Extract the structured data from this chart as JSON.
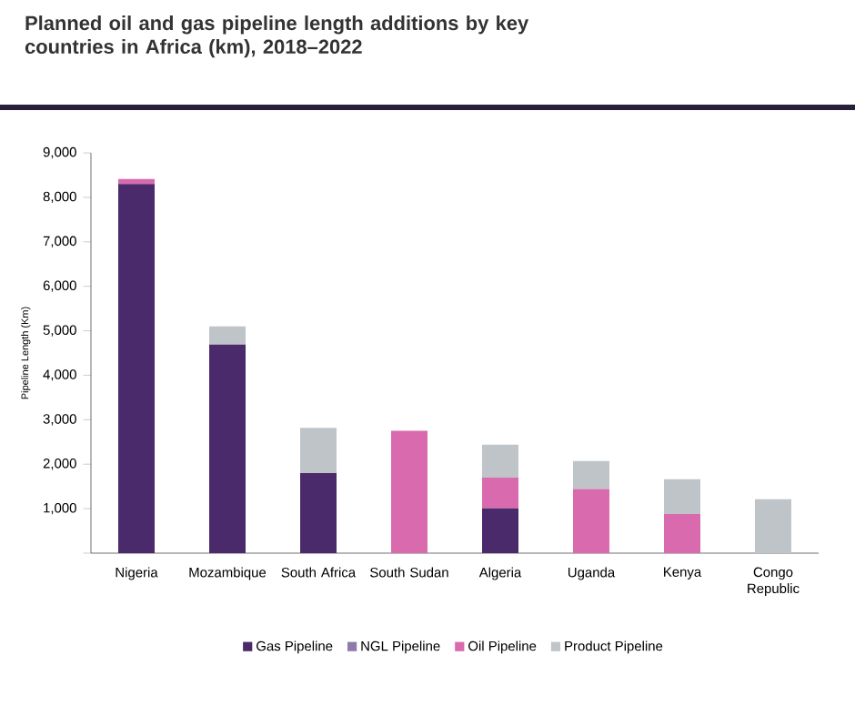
{
  "chart_data": {
    "type": "bar",
    "stacked": true,
    "title": "Planned oil and gas pipeline length additions by key countries in Africa (km), 2018–2022",
    "ylabel": "Pipeline Length (Km)",
    "categories": [
      "Nigeria",
      "Mozambique",
      "South Africa",
      "South Sudan",
      "Algeria",
      "Uganda",
      "Kenya",
      "Congo Republic"
    ],
    "series": [
      {
        "name": "Gas Pipeline",
        "color": "#4b2a6b",
        "values": [
          8300,
          4690,
          1800,
          0,
          1010,
          0,
          0,
          0
        ]
      },
      {
        "name": "NGL Pipeline",
        "color": "#8e7ba8",
        "values": [
          0,
          0,
          0,
          0,
          0,
          0,
          0,
          0
        ]
      },
      {
        "name": "Oil Pipeline",
        "color": "#d96aae",
        "values": [
          110,
          0,
          0,
          2750,
          690,
          1440,
          880,
          0
        ]
      },
      {
        "name": "Product Pipeline",
        "color": "#bfc4c8",
        "values": [
          0,
          410,
          1020,
          0,
          740,
          630,
          780,
          1210
        ]
      }
    ],
    "ylim": [
      0,
      9000
    ],
    "yticks": [
      {
        "value": 0,
        "label": null
      },
      {
        "value": 1000,
        "label": "1,000"
      },
      {
        "value": 2000,
        "label": "2,000"
      },
      {
        "value": 3000,
        "label": "3,000"
      },
      {
        "value": 4000,
        "label": "4,000"
      },
      {
        "value": 5000,
        "label": "5,000"
      },
      {
        "value": 6000,
        "label": "6,000"
      },
      {
        "value": 7000,
        "label": "7,000"
      },
      {
        "value": 8000,
        "label": "8,000"
      },
      {
        "value": 9000,
        "label": "9,000"
      }
    ],
    "legend": "bottom"
  }
}
